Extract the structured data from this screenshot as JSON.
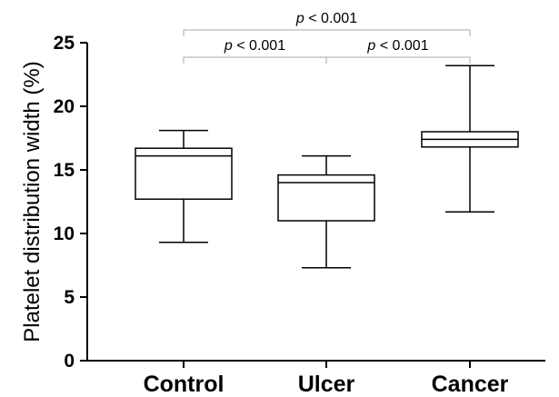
{
  "chart_data": {
    "type": "box",
    "title": "",
    "xlabel": "",
    "ylabel": "Platelet distribution width (%)",
    "ylim": [
      0,
      25
    ],
    "yticks": [
      "0",
      "5",
      "10",
      "15",
      "20",
      "25"
    ],
    "categories": [
      "Control",
      "Ulcer",
      "Cancer"
    ],
    "boxes": [
      {
        "category": "Control",
        "min": 9.3,
        "q1": 12.7,
        "median": 16.1,
        "q3": 16.7,
        "max": 18.1
      },
      {
        "category": "Ulcer",
        "min": 7.3,
        "q1": 11.0,
        "median": 14.0,
        "q3": 14.6,
        "max": 16.1
      },
      {
        "category": "Cancer",
        "min": 11.7,
        "q1": 16.8,
        "median": 17.4,
        "q3": 18.0,
        "max": 23.2
      }
    ],
    "significance": [
      {
        "groups": [
          "Control",
          "Ulcer"
        ],
        "p_symbol": "p",
        "p_text": " < 0.001"
      },
      {
        "groups": [
          "Ulcer",
          "Cancer"
        ],
        "p_symbol": "p",
        "p_text": " < 0.001"
      },
      {
        "groups": [
          "Control",
          "Cancer"
        ],
        "p_symbol": "p",
        "p_text": " < 0.001"
      }
    ],
    "grid": false,
    "legend": "none"
  }
}
